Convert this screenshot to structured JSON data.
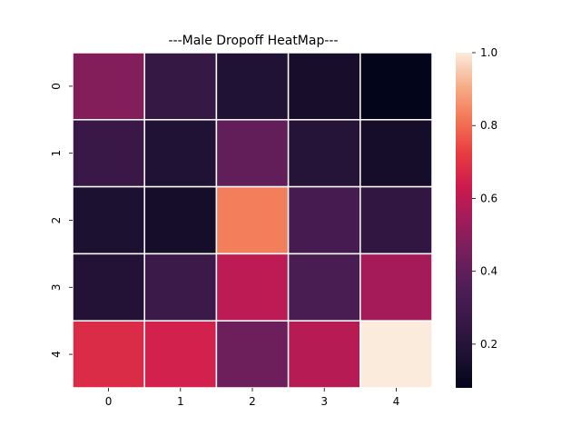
{
  "chart_data": {
    "type": "heatmap",
    "title": "---Male Dropoff HeatMap---",
    "x_tick_labels": [
      "0",
      "1",
      "2",
      "3",
      "4"
    ],
    "y_tick_labels": [
      "0",
      "1",
      "2",
      "3",
      "4"
    ],
    "values": [
      [
        0.48,
        0.26,
        0.18,
        0.15,
        0.08
      ],
      [
        0.27,
        0.18,
        0.4,
        0.2,
        0.14
      ],
      [
        0.17,
        0.14,
        0.83,
        0.32,
        0.24
      ],
      [
        0.19,
        0.28,
        0.6,
        0.33,
        0.55
      ],
      [
        0.68,
        0.65,
        0.43,
        0.59,
        1.0
      ]
    ],
    "colorbar": {
      "vmin": 0.08,
      "vmax": 1.0,
      "ticks": [
        0.2,
        0.4,
        0.6,
        0.8,
        1.0
      ],
      "tick_labels": [
        "0.2",
        "0.4",
        "0.6",
        "0.8",
        "1.0"
      ],
      "colormap": "rocket"
    },
    "cell_separator_color": "#ffffff",
    "grid": false,
    "legend": "colorbar-right"
  }
}
